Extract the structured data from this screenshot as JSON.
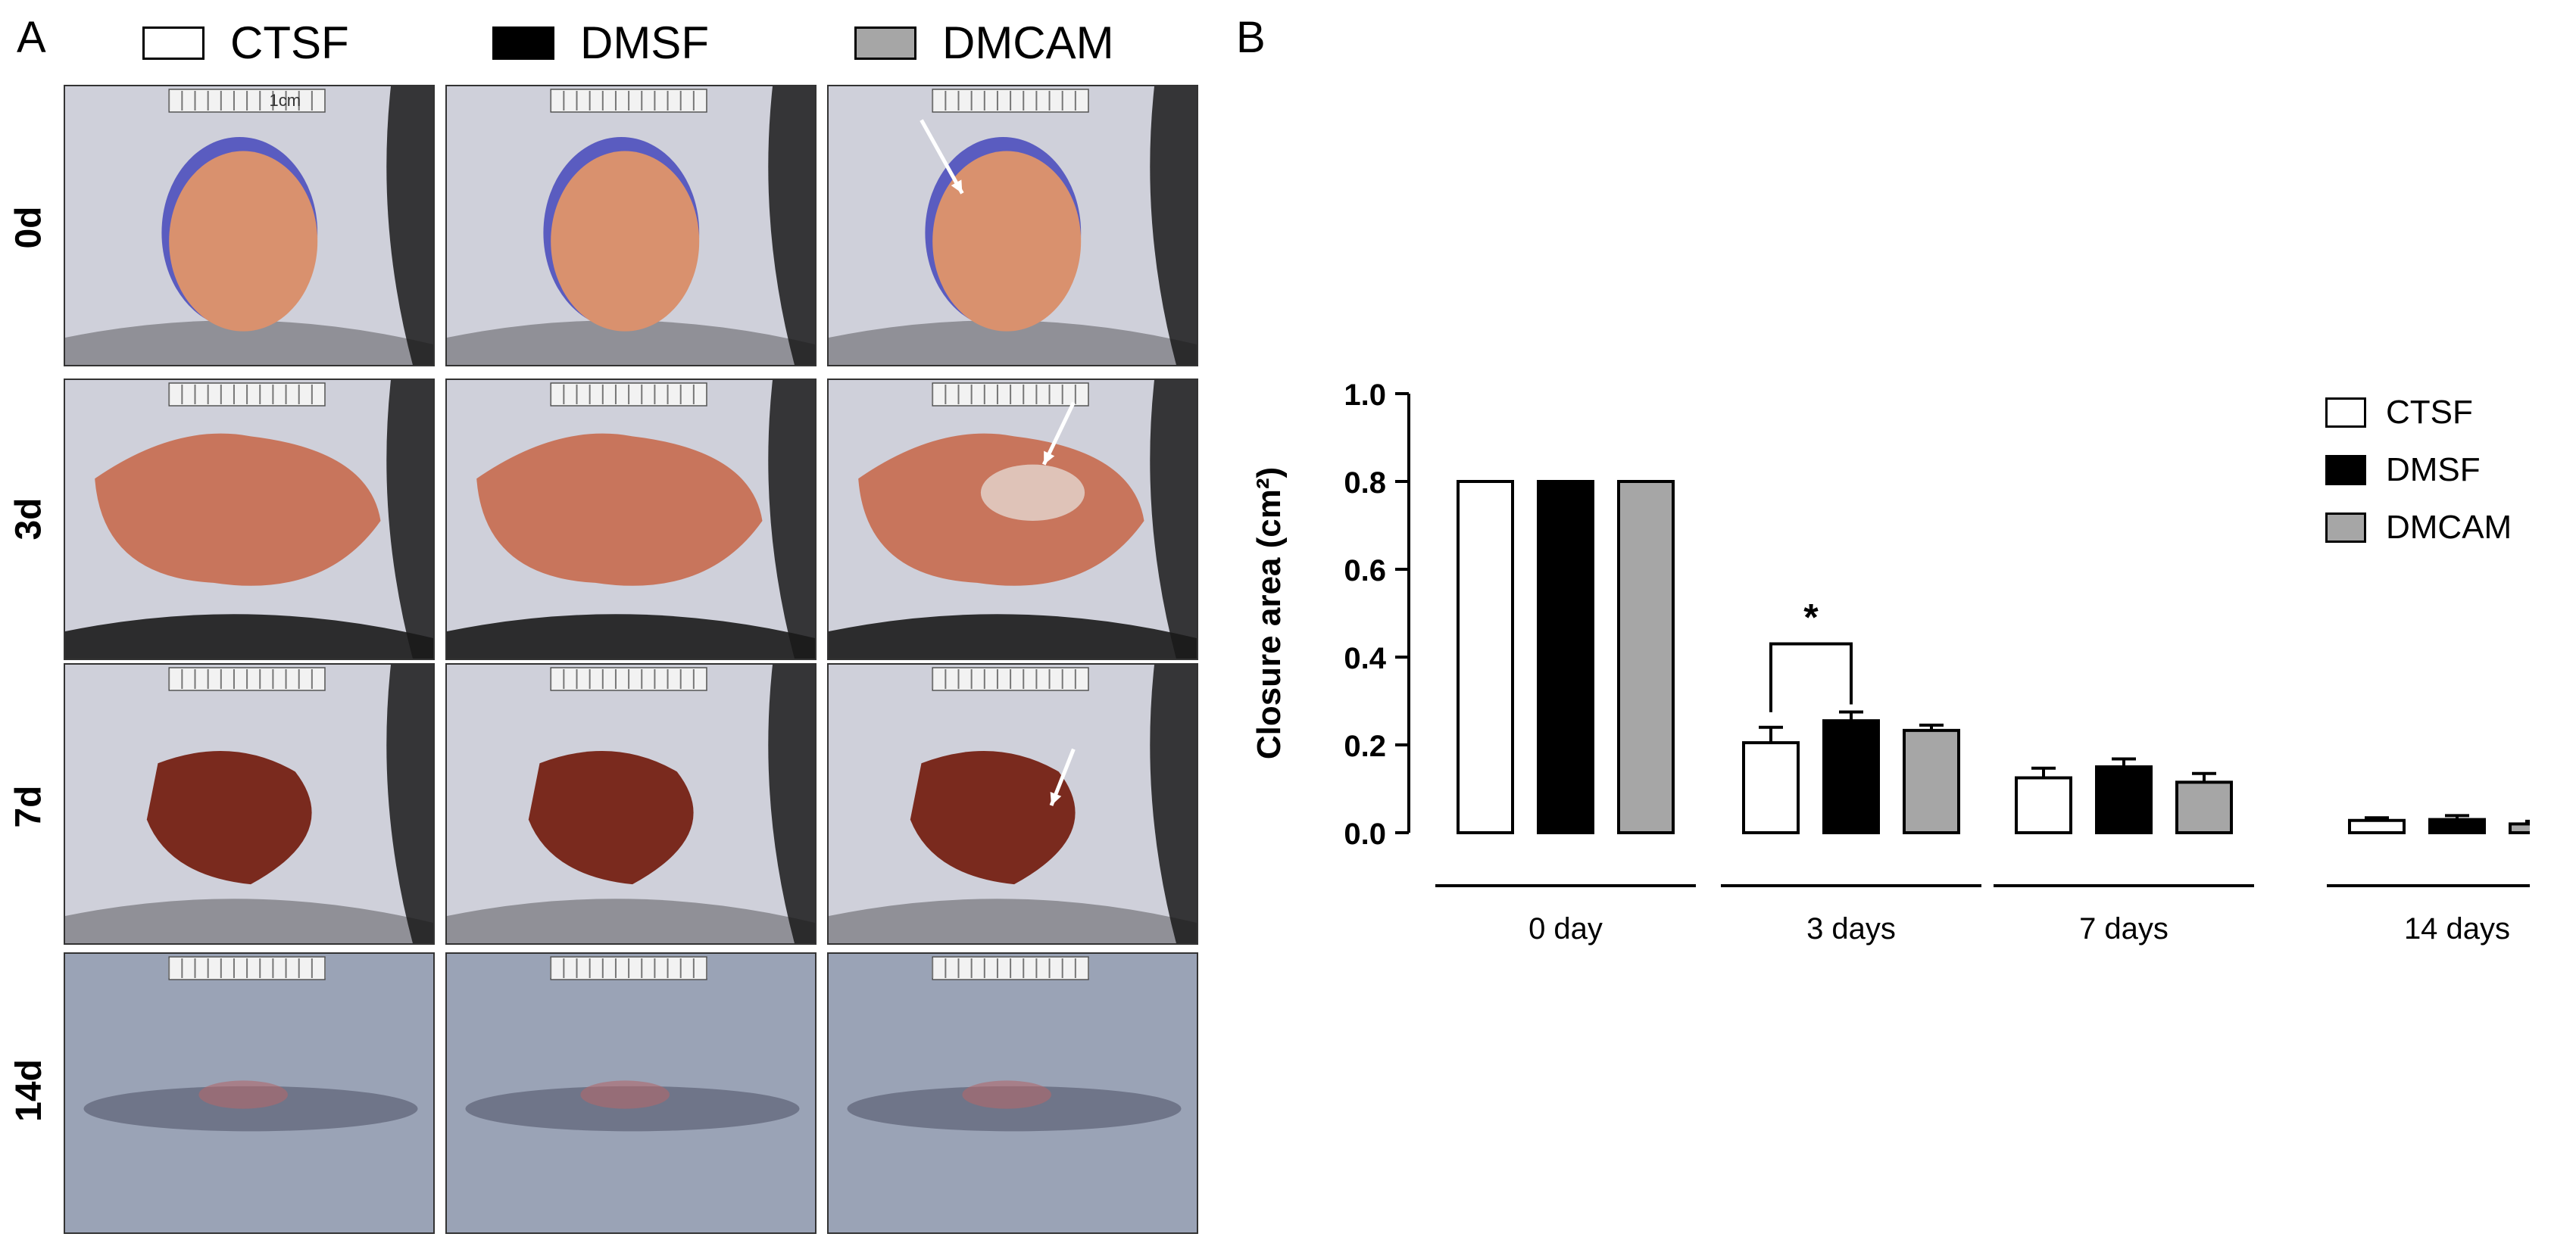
{
  "panel_a": {
    "letter": "A",
    "legend": [
      {
        "label": "CTSF",
        "color": "#ffffff"
      },
      {
        "label": "DMSF",
        "color": "#000000"
      },
      {
        "label": "DMCAM",
        "color": "#a6a6a6"
      }
    ],
    "row_labels": [
      "0d",
      "3d",
      "7d",
      "14d"
    ],
    "scale_label": "1cm",
    "colors": {
      "skin": "#cfd0da",
      "wound_fresh": "#d9916e",
      "wound_3d": "#c8755c",
      "wound_scab": "#7a2a1e",
      "fur": "#1a1a1a",
      "marker": "#5a5cc0"
    }
  },
  "panel_b": {
    "letter": "B",
    "legend": [
      {
        "label": "CTSF",
        "color": "#ffffff"
      },
      {
        "label": "DMSF",
        "color": "#000000"
      },
      {
        "label": "DMCAM",
        "color": "#a6a6a6"
      }
    ]
  },
  "chart_data": {
    "type": "bar",
    "title": "",
    "xlabel": "",
    "ylabel": "Closure area (cm²)",
    "ylim": [
      0,
      1.0
    ],
    "yticks": [
      "0.0",
      "0.2",
      "0.4",
      "0.6",
      "0.8",
      "1.0"
    ],
    "categories": [
      "0 day",
      "3 days",
      "7 days",
      "14 days"
    ],
    "series": [
      {
        "name": "CTSF",
        "color": "#ffffff",
        "values": [
          0.8,
          0.205,
          0.125,
          0.028
        ],
        "errors": [
          0,
          0.035,
          0.022,
          0.006
        ]
      },
      {
        "name": "DMSF",
        "color": "#000000",
        "values": [
          0.8,
          0.255,
          0.15,
          0.03
        ],
        "errors": [
          0,
          0.02,
          0.018,
          0.009
        ]
      },
      {
        "name": "DMCAM",
        "color": "#a6a6a6",
        "values": [
          0.8,
          0.233,
          0.115,
          0.02
        ],
        "errors": [
          0,
          0.012,
          0.02,
          0.006
        ]
      }
    ],
    "annotations": [
      {
        "text": "*",
        "category": "3 days",
        "between": [
          "CTSF",
          "DMSF"
        ]
      }
    ],
    "legend_position": "top-right",
    "grid": false
  }
}
